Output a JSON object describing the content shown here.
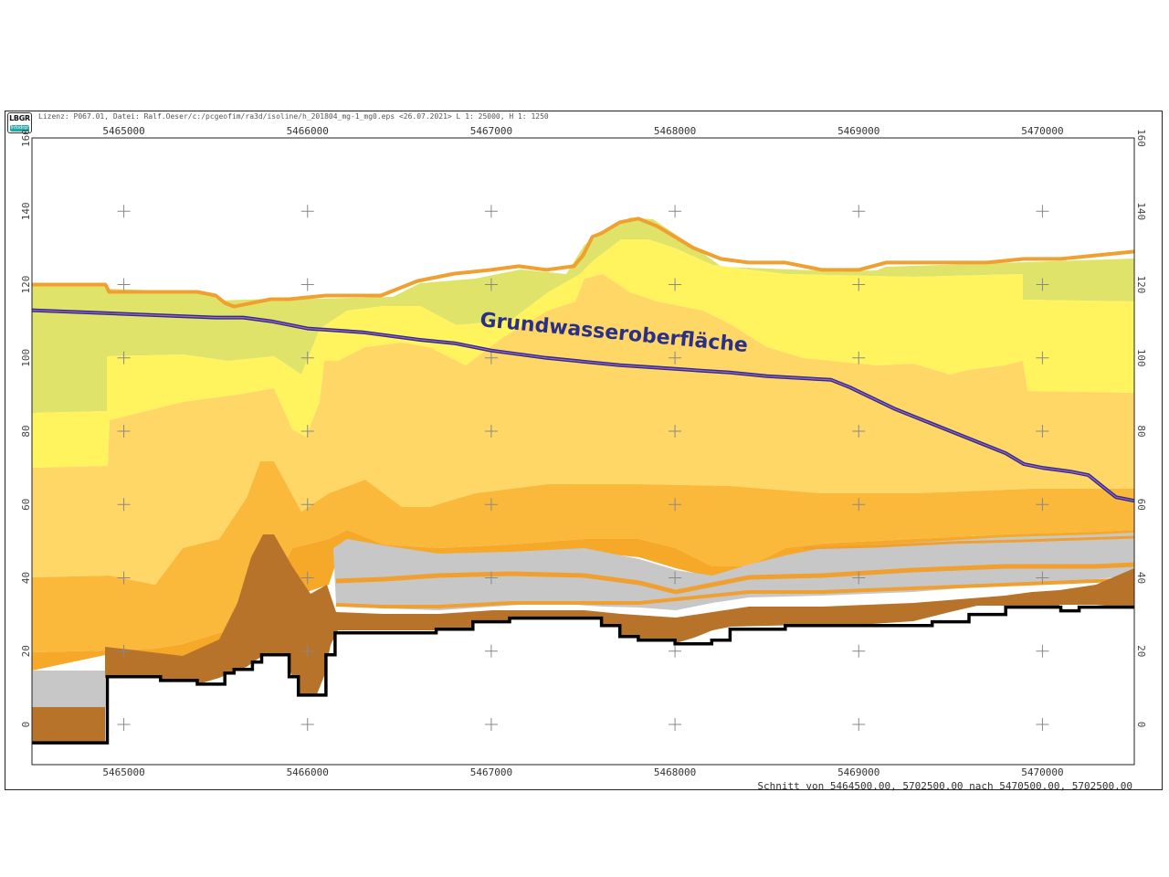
{
  "header": {
    "logo_text": "LBGR",
    "logo_sub": "Infodrgr",
    "info": "Lizenz: P067.01, Datei: Ralf.Oeser/c:/pcgeofim/ra3d/isoline/h_201804_mg-1_mg0.eps <26.07.2021> L 1: 25000, H 1:  1250"
  },
  "footer": {
    "caption": "Schnitt von 5464500.00, 5702500.00 nach 5470500.00, 5702500.00"
  },
  "annotation": {
    "groundwater_label": "Grundwasseroberfläche"
  },
  "colors": {
    "terrain_line": "#f0a030",
    "groundwater_line": "#2b2f86",
    "groundwater_inner": "#b060c0",
    "base_line": "#000000",
    "layer_green": "#dfe36a",
    "layer_yellow": "#fff35e",
    "layer_light_orange": "#ffd766",
    "layer_orange": "#fbb93c",
    "layer_dark_orange": "#f6a828",
    "layer_grey": "#c7c7c7",
    "layer_brown": "#b8732a"
  },
  "chart_data": {
    "type": "cross-section",
    "x_ticks": [
      "5465000",
      "5466000",
      "5467000",
      "5468000",
      "5469000",
      "5470000"
    ],
    "y_ticks": [
      "0",
      "20",
      "40",
      "60",
      "80",
      "100",
      "120",
      "140",
      "160"
    ],
    "xlim": [
      5464500,
      5470500
    ],
    "ylim": [
      -10,
      160
    ],
    "grid": "crosses",
    "surfaces": {
      "terrain": [
        [
          5464500,
          120
        ],
        [
          5464900,
          120
        ],
        [
          5464920,
          118
        ],
        [
          5465200,
          118
        ],
        [
          5465400,
          118
        ],
        [
          5465500,
          117
        ],
        [
          5465550,
          115
        ],
        [
          5465600,
          114
        ],
        [
          5465700,
          115
        ],
        [
          5465800,
          116
        ],
        [
          5465900,
          116
        ],
        [
          5466100,
          117
        ],
        [
          5466300,
          117
        ],
        [
          5466400,
          117
        ],
        [
          5466500,
          119
        ],
        [
          5466600,
          121
        ],
        [
          5466800,
          123
        ],
        [
          5467000,
          124
        ],
        [
          5467150,
          125
        ],
        [
          5467300,
          124
        ],
        [
          5467450,
          125
        ],
        [
          5467500,
          128
        ],
        [
          5467550,
          133
        ],
        [
          5467600,
          134
        ],
        [
          5467700,
          137
        ],
        [
          5467800,
          138
        ],
        [
          5467900,
          136
        ],
        [
          5468000,
          133
        ],
        [
          5468100,
          130
        ],
        [
          5468250,
          127
        ],
        [
          5468400,
          126
        ],
        [
          5468600,
          126
        ],
        [
          5468800,
          124
        ],
        [
          5469000,
          124
        ],
        [
          5469150,
          126
        ],
        [
          5469400,
          126
        ],
        [
          5469700,
          126
        ],
        [
          5469900,
          127
        ],
        [
          5470100,
          127
        ],
        [
          5470300,
          128
        ],
        [
          5470500,
          129
        ]
      ],
      "groundwater": [
        [
          5464500,
          113
        ],
        [
          5465000,
          112
        ],
        [
          5465500,
          111
        ],
        [
          5465650,
          111
        ],
        [
          5465800,
          110
        ],
        [
          5466000,
          108
        ],
        [
          5466300,
          107
        ],
        [
          5466600,
          105
        ],
        [
          5466800,
          104
        ],
        [
          5467000,
          102
        ],
        [
          5467300,
          100
        ],
        [
          5467700,
          98
        ],
        [
          5468000,
          97
        ],
        [
          5468300,
          96
        ],
        [
          5468500,
          95
        ],
        [
          5468850,
          94
        ],
        [
          5468950,
          92
        ],
        [
          5469200,
          86
        ],
        [
          5469500,
          80
        ],
        [
          5469800,
          74
        ],
        [
          5469900,
          71
        ],
        [
          5470000,
          70
        ],
        [
          5470150,
          69
        ],
        [
          5470250,
          68
        ],
        [
          5470350,
          64
        ],
        [
          5470400,
          62
        ],
        [
          5470500,
          61
        ]
      ],
      "base": [
        [
          5464500,
          -5
        ],
        [
          5464900,
          -5
        ],
        [
          5464910,
          13
        ],
        [
          5465100,
          13
        ],
        [
          5465200,
          12
        ],
        [
          5465400,
          11
        ],
        [
          5465500,
          11
        ],
        [
          5465550,
          14
        ],
        [
          5465600,
          15
        ],
        [
          5465700,
          17
        ],
        [
          5465750,
          19
        ],
        [
          5465850,
          19
        ],
        [
          5465900,
          13
        ],
        [
          5465950,
          8
        ],
        [
          5466050,
          8
        ],
        [
          5466100,
          19
        ],
        [
          5466150,
          25
        ],
        [
          5466300,
          25
        ],
        [
          5466500,
          25
        ],
        [
          5466700,
          26
        ],
        [
          5466900,
          28
        ],
        [
          5467100,
          29
        ],
        [
          5467400,
          29
        ],
        [
          5467600,
          27
        ],
        [
          5467700,
          24
        ],
        [
          5467800,
          23
        ],
        [
          5467900,
          23
        ],
        [
          5468000,
          22
        ],
        [
          5468100,
          22
        ],
        [
          5468200,
          23
        ],
        [
          5468300,
          26
        ],
        [
          5468600,
          27
        ],
        [
          5468800,
          27
        ],
        [
          5469000,
          27
        ],
        [
          5469250,
          27
        ],
        [
          5469400,
          28
        ],
        [
          5469600,
          30
        ],
        [
          5469800,
          32
        ],
        [
          5470000,
          32
        ],
        [
          5470100,
          31
        ],
        [
          5470200,
          32
        ],
        [
          5470500,
          32
        ]
      ]
    }
  }
}
